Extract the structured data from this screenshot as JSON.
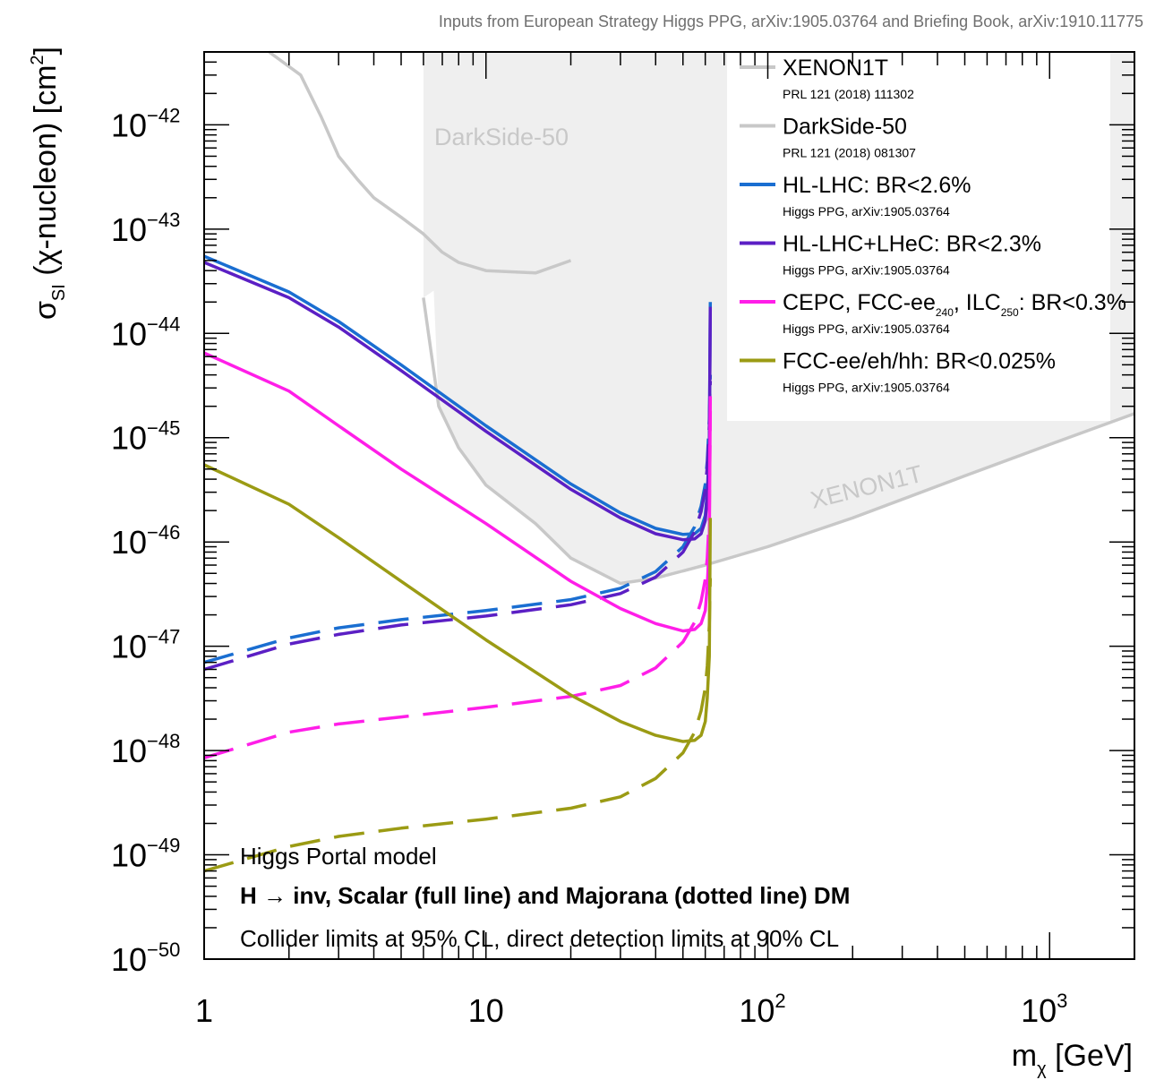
{
  "chart_data": {
    "type": "line",
    "title": "Inputs from European Strategy Higgs PPG, arXiv:1905.03764 and Briefing Book, arXiv:1910.11775",
    "xlabel": {
      "main": "m",
      "sub": "χ",
      "unit": " [GeV]"
    },
    "ylabel": {
      "pre": "σ",
      "sub": "SI",
      "mid": " (χ-nucleon) [cm",
      "sup": "2",
      "post": "]"
    },
    "x_scale": "log",
    "y_scale": "log",
    "xlim": [
      1,
      2000
    ],
    "ylim": [
      1e-50,
      5e-42
    ],
    "grid": false,
    "legend_position": "top-right",
    "x_ticks": [
      {
        "value": 1,
        "base": "1",
        "exp": ""
      },
      {
        "value": 10,
        "base": "10",
        "exp": ""
      },
      {
        "value": 100,
        "base": "10",
        "exp": "2"
      },
      {
        "value": 1000,
        "base": "10",
        "exp": "3"
      }
    ],
    "y_ticks": [
      {
        "value": 1e-42,
        "base": "10",
        "exp": "−42"
      },
      {
        "value": 1e-43,
        "base": "10",
        "exp": "−43"
      },
      {
        "value": 1e-44,
        "base": "10",
        "exp": "−44"
      },
      {
        "value": 1e-45,
        "base": "10",
        "exp": "−45"
      },
      {
        "value": 1e-46,
        "base": "10",
        "exp": "−46"
      },
      {
        "value": 1e-47,
        "base": "10",
        "exp": "−47"
      },
      {
        "value": 1e-48,
        "base": "10",
        "exp": "−48"
      },
      {
        "value": 1e-49,
        "base": "10",
        "exp": "−49"
      },
      {
        "value": 1e-50,
        "base": "10",
        "exp": "−50"
      }
    ],
    "exclusion_regions": [
      {
        "id": "darkside",
        "label": "DarkSide-50",
        "color": "#efefef",
        "x": [
          6,
          6,
          20
        ],
        "y": [
          5e-42,
          2.2e-44,
          2e-43
        ]
      },
      {
        "id": "xenon",
        "label": "XENON1T",
        "color": "#efefef",
        "x": [
          6,
          6.8,
          8,
          10,
          15,
          20,
          30,
          40,
          60,
          100,
          200,
          500,
          1000,
          2000
        ],
        "y": [
          5e-42,
          2e-45,
          8e-46,
          3.5e-46,
          1.5e-46,
          7e-47,
          4e-47,
          4.5e-47,
          6e-47,
          9e-47,
          1.7e-46,
          4.3e-46,
          8.6e-46,
          1.7e-45
        ]
      }
    ],
    "series": [
      {
        "id": "darkside-line",
        "color": "#c8c8c8",
        "style": "solid",
        "x": [
          1.7,
          2.2,
          2.6,
          3,
          3.5,
          4,
          5,
          6,
          7,
          8,
          10,
          15,
          20
        ],
        "y": [
          5e-42,
          3e-42,
          1.2e-42,
          5e-43,
          3e-43,
          2e-43,
          1.3e-43,
          9e-44,
          6e-44,
          4.8e-44,
          4e-44,
          3.8e-44,
          5e-44
        ]
      },
      {
        "id": "xenon-line",
        "color": "#c8c8c8",
        "style": "solid",
        "x": [
          6,
          6.8,
          8,
          10,
          15,
          20,
          30,
          40,
          60,
          100,
          200,
          500,
          1000,
          2000
        ],
        "y": [
          2.2e-44,
          2e-45,
          8e-46,
          3.5e-46,
          1.5e-46,
          7e-47,
          4e-47,
          4.5e-47,
          6e-47,
          9e-47,
          1.7e-46,
          4.3e-46,
          8.6e-46,
          1.7e-45
        ]
      },
      {
        "id": "hllhc-scalar",
        "color": "#1a6ed1",
        "style": "solid",
        "x": [
          1,
          2,
          3,
          5,
          10,
          20,
          30,
          40,
          50,
          55,
          58,
          60,
          61,
          62,
          62.5
        ],
        "y": [
          5.5e-44,
          2.5e-44,
          1.3e-44,
          5e-45,
          1.3e-45,
          3.6e-46,
          1.9e-46,
          1.35e-46,
          1.18e-46,
          1.2e-46,
          1.35e-46,
          1.8e-46,
          3e-46,
          8e-46,
          2e-44
        ]
      },
      {
        "id": "hllhc-majorana",
        "color": "#1a6ed1",
        "style": "dashed",
        "x": [
          1,
          2,
          3,
          5,
          10,
          20,
          30,
          40,
          50,
          55,
          58,
          60,
          61,
          62,
          62.5
        ],
        "y": [
          7e-48,
          1.2e-47,
          1.5e-47,
          1.8e-47,
          2.2e-47,
          2.8e-47,
          3.6e-47,
          5.2e-47,
          9e-47,
          1.4e-46,
          2.2e-46,
          3.6e-46,
          6e-46,
          1.5e-45,
          4e-45
        ]
      },
      {
        "id": "hllhc-lhec-scalar",
        "color": "#5b1fc4",
        "style": "solid",
        "x": [
          1,
          2,
          3,
          5,
          10,
          20,
          30,
          40,
          50,
          55,
          58,
          60,
          61,
          62,
          62.5
        ],
        "y": [
          4.8e-44,
          2.2e-44,
          1.15e-44,
          4.4e-45,
          1.15e-45,
          3.2e-46,
          1.7e-46,
          1.2e-46,
          1.05e-46,
          1.07e-46,
          1.2e-46,
          1.6e-46,
          2.7e-46,
          7e-46,
          1.8e-44
        ]
      },
      {
        "id": "hllhc-lhec-majorana",
        "color": "#5b1fc4",
        "style": "dashed",
        "x": [
          1,
          2,
          3,
          5,
          10,
          20,
          30,
          40,
          50,
          55,
          58,
          60,
          61,
          62,
          62.5
        ],
        "y": [
          6e-48,
          1.05e-47,
          1.3e-47,
          1.6e-47,
          1.95e-47,
          2.5e-47,
          3.2e-47,
          4.6e-47,
          8e-47,
          1.25e-46,
          1.95e-46,
          3.2e-46,
          5.3e-46,
          1.3e-45,
          3.5e-45
        ]
      },
      {
        "id": "cepc-scalar",
        "color": "#ff1ee8",
        "style": "solid",
        "x": [
          1,
          2,
          3,
          5,
          10,
          20,
          30,
          40,
          50,
          55,
          58,
          60,
          61,
          62,
          62.5
        ],
        "y": [
          6.5e-45,
          2.8e-45,
          1.3e-45,
          5e-46,
          1.5e-46,
          4.2e-47,
          2.3e-47,
          1.65e-47,
          1.4e-47,
          1.45e-47,
          1.65e-47,
          2.2e-47,
          3.8e-47,
          1e-46,
          2.5e-45
        ]
      },
      {
        "id": "cepc-majorana",
        "color": "#ff1ee8",
        "style": "dashed",
        "x": [
          1,
          2,
          3,
          5,
          10,
          20,
          30,
          40,
          50,
          55,
          58,
          60,
          61,
          62,
          62.5
        ],
        "y": [
          8.5e-49,
          1.5e-48,
          1.8e-48,
          2.1e-48,
          2.6e-48,
          3.3e-48,
          4.2e-48,
          6.2e-48,
          1.1e-47,
          1.7e-47,
          2.7e-47,
          4.4e-47,
          7e-47,
          1.8e-46,
          1.8e-45
        ]
      },
      {
        "id": "fcc-scalar",
        "color": "#9b9b14",
        "style": "solid",
        "x": [
          1,
          2,
          3,
          5,
          10,
          20,
          30,
          40,
          50,
          55,
          58,
          60,
          61,
          62,
          62.5
        ],
        "y": [
          5.5e-46,
          2.3e-46,
          1.1e-46,
          4.2e-47,
          1.15e-47,
          3.4e-48,
          1.9e-48,
          1.4e-48,
          1.22e-48,
          1.25e-48,
          1.4e-48,
          1.9e-48,
          3.2e-48,
          8e-48,
          1.7e-46
        ]
      },
      {
        "id": "fcc-majorana",
        "color": "#9b9b14",
        "style": "dashed",
        "x": [
          1,
          2,
          3,
          5,
          10,
          20,
          30,
          40,
          50,
          55,
          58,
          60,
          61,
          62,
          62.5
        ],
        "y": [
          7e-50,
          1.2e-49,
          1.5e-49,
          1.8e-49,
          2.2e-49,
          2.8e-49,
          3.6e-49,
          5.4e-49,
          9.5e-49,
          1.5e-48,
          2.4e-48,
          4e-48,
          6.5e-48,
          1.6e-47,
          4.5e-47
        ]
      }
    ],
    "legend": [
      {
        "series": "xenon-line",
        "label": "XENON1T",
        "ref": "PRL 121 (2018) 111302"
      },
      {
        "series": "darkside-line",
        "label": "DarkSide-50",
        "ref": "PRL 121 (2018) 081307"
      },
      {
        "series": "hllhc-scalar",
        "label": "HL-LHC: BR<2.6%",
        "ref": "Higgs PPG, arXiv:1905.03764"
      },
      {
        "series": "hllhc-lhec-scalar",
        "label": "HL-LHC+LHeC: BR<2.3%",
        "ref": "Higgs PPG, arXiv:1905.03764"
      },
      {
        "series": "cepc-scalar",
        "label_parts": [
          "CEPC, FCC-ee",
          "240",
          ", ILC",
          "250",
          ": BR<0.3%"
        ],
        "ref": "Higgs PPG, arXiv:1905.03764"
      },
      {
        "series": "fcc-scalar",
        "label": "FCC-ee/eh/hh: BR<0.025%",
        "ref": "Higgs PPG, arXiv:1905.03764"
      }
    ],
    "annotations": {
      "band_darkside": "DarkSide-50",
      "band_xenon": "XENON1T",
      "line1": "Higgs Portal model",
      "line2": "H → inv, Scalar (full line) and Majorana (dotted line) DM",
      "line3": "Collider limits at 95% CL, direct detection limits at 90% CL"
    }
  }
}
